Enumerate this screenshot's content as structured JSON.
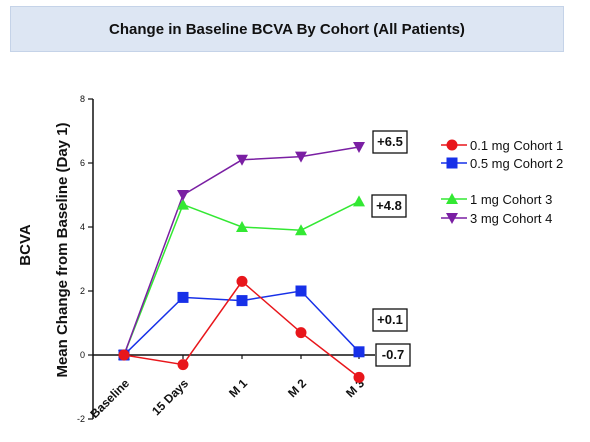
{
  "chart_data": {
    "type": "line",
    "title": "Change in Baseline BCVA By Cohort (All Patients)",
    "ylabel_outer": "BCVA",
    "ylabel": "Mean Change from Baseline (Day 1)",
    "xlabel": "",
    "categories": [
      "Baseline",
      "15 Days",
      "M 1",
      "M 2",
      "M 3"
    ],
    "ylim": [
      -2,
      8
    ],
    "yticks": [
      "-2",
      "0",
      "2",
      "4",
      "6",
      "8"
    ],
    "ytick_values": [
      -2,
      0,
      2,
      4,
      6,
      8
    ],
    "grid": false,
    "legend_position": "right",
    "series": [
      {
        "name": "0.1 mg Cohort 1",
        "color": "#e8161b",
        "marker": "circle",
        "values": [
          0,
          -0.3,
          2.3,
          0.7,
          -0.7
        ],
        "end_label": "-0.7"
      },
      {
        "name": "0.5 mg Cohort 2",
        "color": "#1730e8",
        "marker": "square",
        "values": [
          0,
          1.8,
          1.7,
          2.0,
          0.1
        ],
        "end_label": "+0.1"
      },
      {
        "name": "1 mg Cohort 3",
        "color": "#33e833",
        "marker": "triangle-up",
        "values": [
          0,
          4.7,
          4.0,
          3.9,
          4.8
        ],
        "end_label": "+4.8"
      },
      {
        "name": "3 mg Cohort 4",
        "color": "#7a1fa3",
        "marker": "triangle-down",
        "values": [
          0,
          5.0,
          6.1,
          6.2,
          6.5
        ],
        "end_label": "+6.5"
      }
    ]
  }
}
